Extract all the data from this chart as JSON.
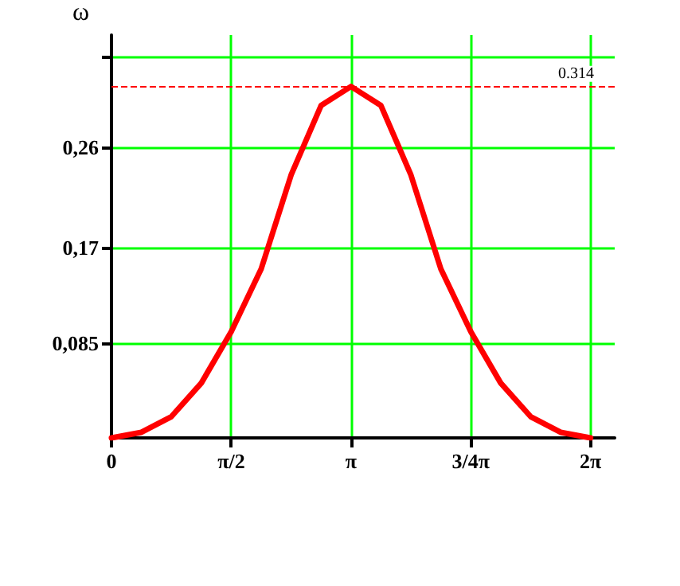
{
  "chart_data": {
    "type": "line",
    "ylabel": "ω",
    "x": [
      0,
      0.3927,
      0.7854,
      1.1781,
      1.5708,
      1.9635,
      2.3562,
      2.7489,
      3.1416,
      3.5343,
      3.927,
      4.3197,
      4.7124,
      5.1051,
      5.4978,
      5.8905,
      6.2832
    ],
    "series": [
      {
        "color": "#ff0000",
        "values": [
          0,
          0.005,
          0.019,
          0.049,
          0.095,
          0.151,
          0.235,
          0.297,
          0.314,
          0.297,
          0.235,
          0.151,
          0.095,
          0.049,
          0.019,
          0.005,
          0
        ]
      }
    ],
    "xlim": [
      0,
      6.6
    ],
    "xticks": [
      {
        "value": 0,
        "label": "0"
      },
      {
        "value": 1.5708,
        "label": "π/2"
      },
      {
        "value": 3.1416,
        "label": "π"
      },
      {
        "value": 4.7124,
        "label": "3/4π"
      },
      {
        "value": 6.2832,
        "label": "2π"
      }
    ],
    "ylim": [
      0,
      0.36
    ],
    "yticks": [
      {
        "value": 0.085,
        "label": "0,085"
      },
      {
        "value": 0.17,
        "label": "0,17"
      },
      {
        "value": 0.26,
        "label": "0,26"
      },
      {
        "value": 0.34,
        "label": null
      }
    ],
    "ref_lines": [
      {
        "axis": "y",
        "value": 0.314,
        "label": "0.314",
        "color": "#ff0000",
        "line_style": "dashed"
      }
    ],
    "grid": true,
    "marker": "none",
    "line_style": "solid"
  }
}
